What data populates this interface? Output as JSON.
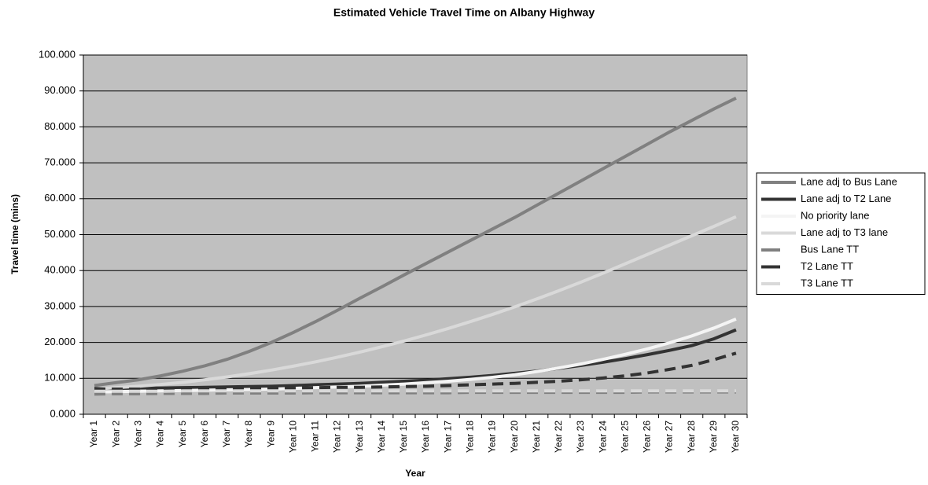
{
  "chart_data": {
    "type": "line",
    "title": "Estimated Vehicle Travel Time on Albany Highway",
    "xlabel": "Year",
    "ylabel": "Travel time (mins)",
    "categories": [
      "Year 1",
      "Year 2",
      "Year 3",
      "Year 4",
      "Year 5",
      "Year 6",
      "Year 7",
      "Year 8",
      "Year 9",
      "Year 10",
      "Year 11",
      "Year 12",
      "Year 13",
      "Year 14",
      "Year 15",
      "Year 16",
      "Year 17",
      "Year 18",
      "Year 19",
      "Year 20",
      "Year 21",
      "Year 22",
      "Year 23",
      "Year 24",
      "Year 25",
      "Year 26",
      "Year 27",
      "Year 28",
      "Year 29",
      "Year 30"
    ],
    "ylim": [
      0,
      100
    ],
    "yticks": [
      {
        "value": 0,
        "label": "0.000"
      },
      {
        "value": 10,
        "label": "10.000"
      },
      {
        "value": 20,
        "label": "20.000"
      },
      {
        "value": 30,
        "label": "30.000"
      },
      {
        "value": 40,
        "label": "40.000"
      },
      {
        "value": 50,
        "label": "50.000"
      },
      {
        "value": 60,
        "label": "60.000"
      },
      {
        "value": 70,
        "label": "70.000"
      },
      {
        "value": 80,
        "label": "80.000"
      },
      {
        "value": 90,
        "label": "90.000"
      },
      {
        "value": 100,
        "label": "100.000"
      }
    ],
    "grid": true,
    "legend": "right",
    "plot_background": "#c0c0c0",
    "series": [
      {
        "name": "Lane adj to Bus Lane",
        "color": "#808080",
        "dashed": false,
        "values": [
          8.0,
          8.8,
          9.6,
          10.7,
          12.0,
          13.5,
          15.3,
          17.5,
          20.0,
          22.8,
          25.8,
          29.0,
          32.3,
          35.5,
          38.8,
          42.0,
          45.2,
          48.4,
          51.6,
          54.8,
          58.2,
          61.6,
          65.0,
          68.4,
          71.8,
          75.2,
          78.6,
          81.8,
          85.0,
          88.0
        ]
      },
      {
        "name": "Lane adj to T2 Lane",
        "color": "#333333",
        "dashed": false,
        "values": [
          7.2,
          7.2,
          7.3,
          7.3,
          7.4,
          7.5,
          7.6,
          7.7,
          7.8,
          8.0,
          8.2,
          8.4,
          8.6,
          8.9,
          9.2,
          9.5,
          9.9,
          10.3,
          10.8,
          11.4,
          12.0,
          12.8,
          13.6,
          14.5,
          15.5,
          16.6,
          17.8,
          19.1,
          21.0,
          23.5
        ]
      },
      {
        "name": "No priority lane",
        "color": "#f4f4f4",
        "dashed": false,
        "values": [
          6.2,
          6.3,
          6.4,
          6.5,
          6.6,
          6.7,
          6.8,
          6.9,
          7.0,
          7.2,
          7.4,
          7.6,
          7.8,
          8.1,
          8.4,
          8.8,
          9.2,
          9.7,
          10.3,
          11.0,
          11.9,
          12.9,
          14.0,
          15.3,
          16.7,
          18.2,
          19.9,
          21.8,
          24.0,
          26.5
        ]
      },
      {
        "name": "Lane adj to T3 lane",
        "color": "#d9d9d9",
        "dashed": false,
        "values": [
          7.0,
          7.4,
          7.8,
          8.3,
          8.9,
          9.6,
          10.4,
          11.3,
          12.3,
          13.4,
          14.6,
          15.9,
          17.3,
          18.8,
          20.4,
          22.1,
          23.9,
          25.8,
          27.8,
          29.9,
          32.1,
          34.4,
          36.8,
          39.3,
          41.9,
          44.5,
          47.1,
          49.7,
          52.3,
          55.0
        ]
      },
      {
        "name": "Bus Lane TT",
        "color": "#808080",
        "dashed": true,
        "values": [
          5.6,
          5.7,
          5.7,
          5.8,
          5.8,
          5.8,
          5.9,
          5.9,
          5.9,
          5.9,
          6.0,
          6.0,
          6.0,
          6.0,
          6.0,
          6.0,
          6.0,
          6.1,
          6.1,
          6.1,
          6.1,
          6.1,
          6.1,
          6.1,
          6.1,
          6.2,
          6.2,
          6.2,
          6.2,
          6.2
        ]
      },
      {
        "name": "T2 Lane TT",
        "color": "#333333",
        "dashed": true,
        "values": [
          7.0,
          7.0,
          7.0,
          7.1,
          7.1,
          7.1,
          7.2,
          7.2,
          7.3,
          7.3,
          7.4,
          7.5,
          7.5,
          7.6,
          7.7,
          7.8,
          8.0,
          8.2,
          8.4,
          8.6,
          8.9,
          9.2,
          9.6,
          10.1,
          10.7,
          11.5,
          12.5,
          13.6,
          15.2,
          17.0
        ]
      },
      {
        "name": "T3 Lane TT",
        "color": "#d9d9d9",
        "dashed": true,
        "values": [
          6.4,
          6.4,
          6.4,
          6.4,
          6.5,
          6.5,
          6.5,
          6.5,
          6.5,
          6.5,
          6.5,
          6.5,
          6.5,
          6.5,
          6.5,
          6.5,
          6.5,
          6.5,
          6.5,
          6.5,
          6.5,
          6.5,
          6.5,
          6.5,
          6.5,
          6.5,
          6.5,
          6.5,
          6.5,
          6.5
        ]
      }
    ]
  }
}
